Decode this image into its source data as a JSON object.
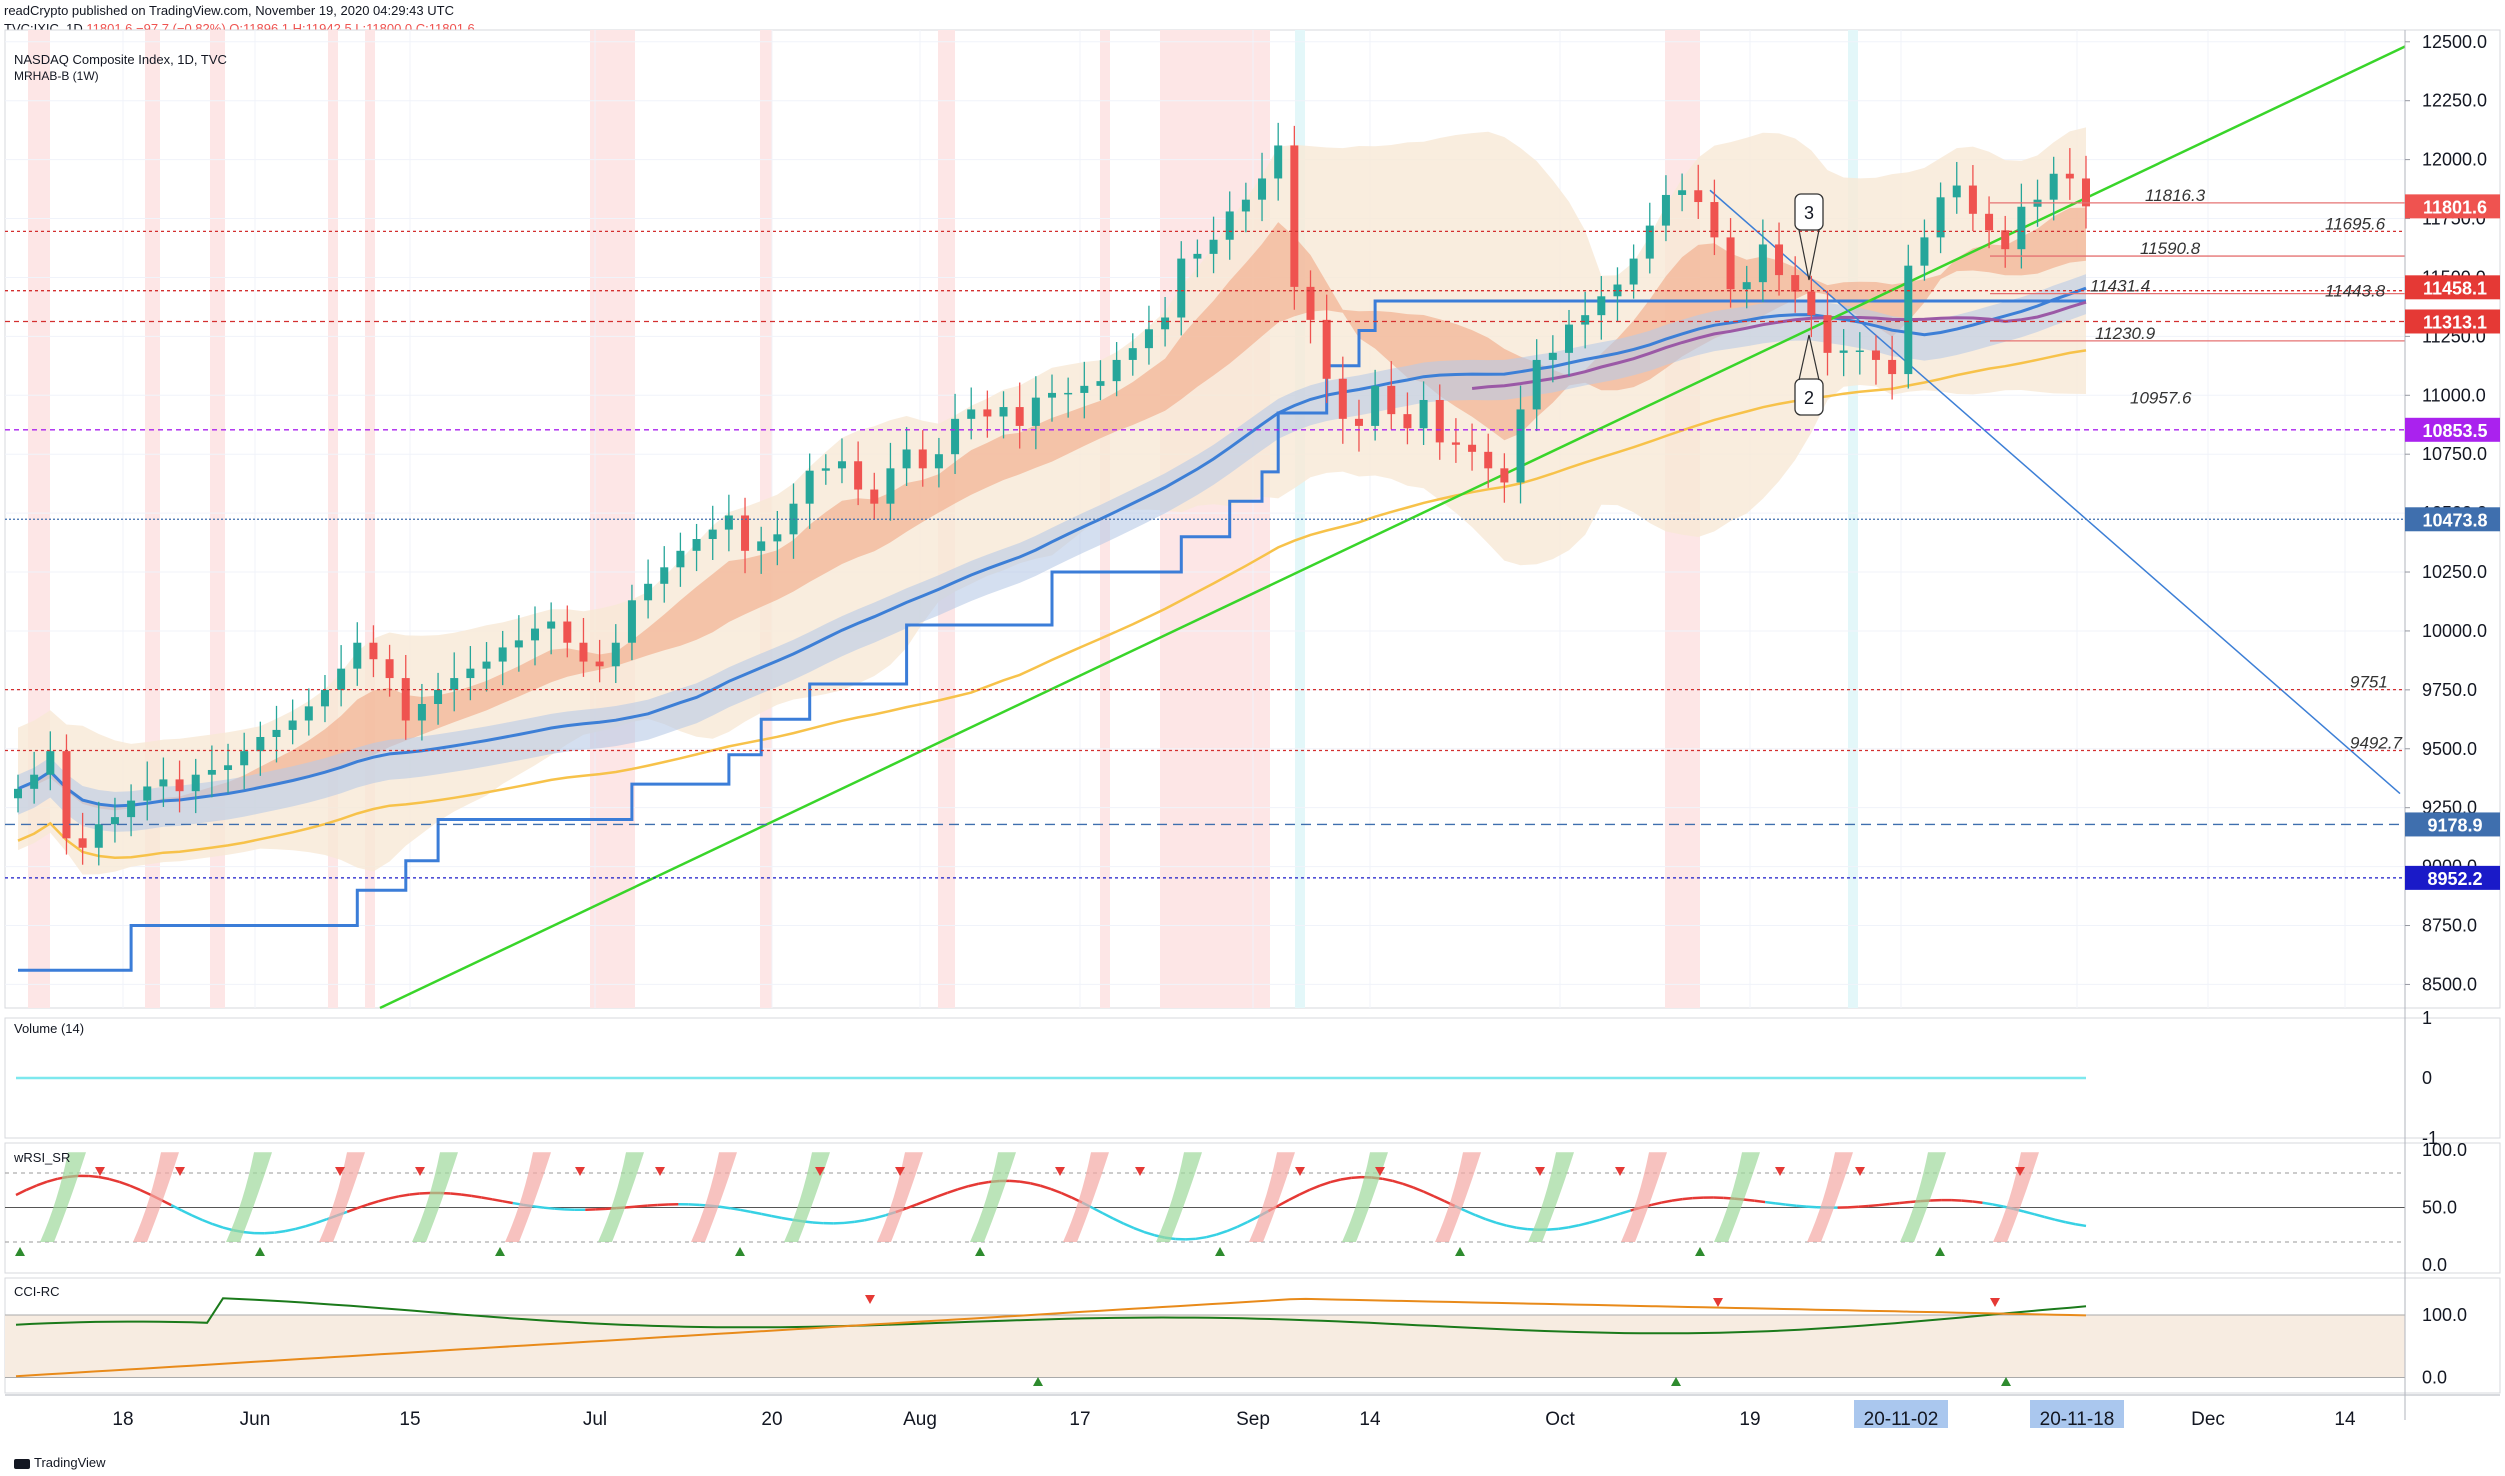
{
  "header": {
    "published": "readCrypto published on TradingView.com, November 19, 2020 04:29:43 UTC",
    "symbol": "TVC:IXIC, 1D",
    "last": "11801.6",
    "change": "−97.7 (−0.82%)",
    "ohlc": "O:11896.1 H:11942.5 L:11800.0 C:11801.6"
  },
  "footer": {
    "brand": "TradingView"
  },
  "colors": {
    "up": "#26a69a",
    "down": "#ef5350",
    "green_trend": "#39d52a",
    "blue_trend": "#3d7fd6",
    "ma_orange": "#f7c24a",
    "step_blue": "#3b7dd8",
    "band_fill": "#f7e9d6",
    "ribbon_blue": "#b7c9e6",
    "ribbon_orange": "#f0a07c",
    "purple": "#9b59a6"
  },
  "chart_data": [
    {
      "type": "line",
      "title": "NASDAQ Composite Index, 1D, TVC",
      "subtitle": "MRHAB-B (1W)",
      "x_ticks": [
        "18",
        "Jun",
        "15",
        "Jul",
        "20",
        "Aug",
        "17",
        "Sep",
        "14",
        "Oct",
        "19",
        "20-11-02",
        "20-11-18",
        "Dec",
        "14"
      ],
      "y_ticks": [
        "12500.0",
        "12250.0",
        "12000.0",
        "11750.0",
        "11500.0",
        "11250.0",
        "11000.0",
        "10750.0",
        "10500.0",
        "10250.0",
        "10000.0",
        "9750.0",
        "9500.0",
        "9250.0",
        "9000.0",
        "8750.0",
        "8500.0"
      ],
      "ylim": [
        8400,
        12550
      ],
      "price_labels": [
        {
          "text": "11801.6",
          "value": 11801.6,
          "color": "#ef5350"
        },
        {
          "text": "11458.1",
          "value": 11458.1,
          "color": "#e53935"
        },
        {
          "text": "11313.1",
          "value": 11313.1,
          "color": "#e53935"
        },
        {
          "text": "10853.5",
          "value": 10853.5,
          "color": "#aa22ee"
        },
        {
          "text": "10473.8",
          "value": 10473.8,
          "color": "#3f6fae"
        },
        {
          "text": "9178.9",
          "value": 9178.9,
          "color": "#3f6fae"
        },
        {
          "text": "8952.2",
          "value": 8952.2,
          "color": "#1a1ac8"
        }
      ],
      "level_labels": [
        {
          "text": "11816.3",
          "value": 11816.3
        },
        {
          "text": "11695.6",
          "value": 11695.6
        },
        {
          "text": "11590.8",
          "value": 11590.8
        },
        {
          "text": "11443.8",
          "value": 11443.8
        },
        {
          "text": "11431.4",
          "value": 11431.4
        },
        {
          "text": "11230.9",
          "value": 11230.9
        },
        {
          "text": "10957.6",
          "value": 10957.6
        },
        {
          "text": "9751",
          "value": 9751
        },
        {
          "text": "9492.7",
          "value": 9492.7
        }
      ],
      "wave_labels": [
        "3",
        "2"
      ],
      "close_series": [
        9330,
        9390,
        9490,
        9120,
        9080,
        9180,
        9210,
        9280,
        9340,
        9370,
        9320,
        9390,
        9410,
        9430,
        9490,
        9550,
        9580,
        9620,
        9680,
        9750,
        9840,
        9950,
        9880,
        9800,
        9620,
        9690,
        9750,
        9800,
        9840,
        9870,
        9930,
        9960,
        10010,
        10040,
        9950,
        9870,
        9850,
        9950,
        10130,
        10200,
        10270,
        10340,
        10390,
        10430,
        10490,
        10340,
        10380,
        10410,
        10540,
        10680,
        10690,
        10720,
        10600,
        10540,
        10690,
        10770,
        10690,
        10750,
        10900,
        10940,
        10910,
        10950,
        10870,
        10990,
        11010,
        11010,
        11040,
        11060,
        11150,
        11200,
        11280,
        11330,
        11580,
        11600,
        11660,
        11780,
        11830,
        11920,
        12060,
        11460,
        11320,
        11070,
        10900,
        10870,
        11040,
        10920,
        10860,
        10980,
        10800,
        10790,
        10760,
        10690,
        10630,
        10940,
        11150,
        11180,
        11300,
        11340,
        11420,
        11470,
        11580,
        11720,
        11850,
        11870,
        11820,
        11670,
        11450,
        11480,
        11640,
        11510,
        11440,
        11340,
        11180,
        11190,
        11190,
        11150,
        11090,
        11550,
        11670,
        11840,
        11890,
        11770,
        11700,
        11620,
        11800,
        11830,
        11940,
        11920,
        11801.6
      ]
    },
    {
      "type": "line",
      "title": "Volume (14)",
      "y_ticks": [
        "1",
        "0",
        "-1"
      ],
      "ylim": [
        -1,
        1
      ],
      "values": [
        0
      ]
    },
    {
      "type": "line",
      "title": "wRSI_SR",
      "y_ticks": [
        "100.0",
        "50.0",
        "0.0"
      ],
      "ylim": [
        0,
        100
      ],
      "levels": [
        80,
        50,
        20
      ]
    },
    {
      "type": "line",
      "title": "CCI-RC",
      "y_ticks": [
        "100.0",
        "0.0"
      ],
      "ylim": [
        -20,
        140
      ],
      "levels": [
        100,
        0
      ]
    }
  ]
}
